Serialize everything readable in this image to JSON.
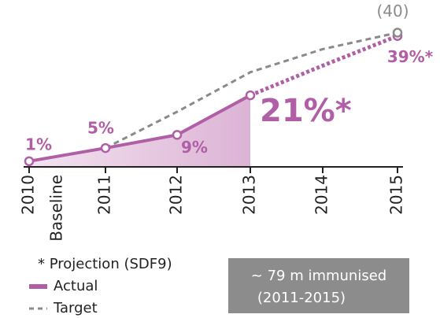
{
  "chart_data": {
    "type": "line",
    "categories": [
      "2010",
      "2011",
      "2012",
      "2013",
      "2014",
      "2015"
    ],
    "baseline_label": "Baseline",
    "ylim": [
      0,
      48
    ],
    "series": [
      {
        "name": "Actual",
        "color": "#b05fa6",
        "dash": "solid",
        "area": true,
        "values": [
          1,
          5,
          9,
          21,
          null,
          null
        ],
        "value_labels": [
          "1%",
          "5%",
          "9%",
          "21%*",
          null,
          null
        ]
      },
      {
        "color": "#b05fa6",
        "dash": "dotted",
        "values": [
          null,
          null,
          null,
          21,
          30,
          39
        ],
        "value_labels": [
          null,
          null,
          null,
          null,
          null,
          "39%*"
        ]
      },
      {
        "name": "Target",
        "color": "#8a8a8a",
        "dash": "dashed",
        "values": [
          null,
          5,
          16,
          28,
          35,
          40
        ],
        "value_labels": [
          null,
          null,
          null,
          null,
          null,
          "(40)"
        ]
      }
    ],
    "footnote": "* Projection (SDF9)",
    "annotation": [
      "~ 79 m immunised",
      "(2011-2015)"
    ]
  }
}
